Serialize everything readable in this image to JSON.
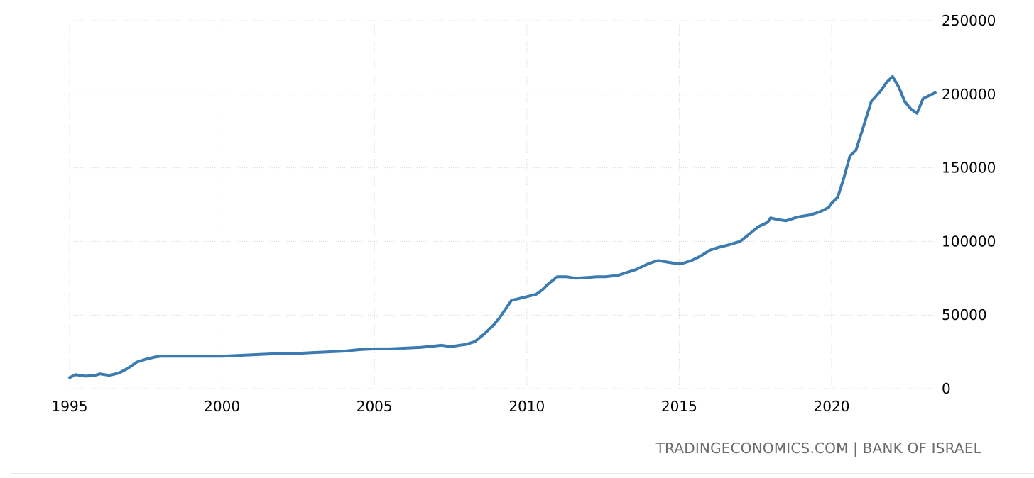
{
  "source_note": "TRADINGECONOMICS.COM | BANK OF ISRAEL",
  "colors": {
    "line": "#3b7bb0",
    "grid": "#d9d9d9",
    "axis_text": "#000000",
    "source_text": "#6b6b6b"
  },
  "chart_data": {
    "type": "line",
    "title": "",
    "xlabel": "",
    "ylabel": "",
    "xlim": [
      1995,
      2023.5
    ],
    "ylim": [
      0,
      250000
    ],
    "x_ticks": [
      1995,
      2000,
      2005,
      2010,
      2015,
      2020
    ],
    "x_tick_labels": [
      "1995",
      "2000",
      "2005",
      "2010",
      "2015",
      "2020"
    ],
    "y_ticks": [
      0,
      50000,
      100000,
      150000,
      200000,
      250000
    ],
    "y_tick_labels": [
      "0",
      "50000",
      "100000",
      "150000",
      "200000",
      "250000"
    ],
    "y_axis_side": "right",
    "grid": true,
    "legend": false,
    "series": [
      {
        "x": [
          1995.0,
          1995.2,
          1995.5,
          1995.8,
          1996.0,
          1996.3,
          1996.6,
          1996.8,
          1997.0,
          1997.2,
          1997.5,
          1997.8,
          1998.0,
          1998.5,
          1999.0,
          1999.5,
          2000.0,
          2000.5,
          2001.0,
          2001.5,
          2002.0,
          2002.5,
          2003.0,
          2003.5,
          2004.0,
          2004.5,
          2005.0,
          2005.5,
          2006.0,
          2006.5,
          2007.0,
          2007.2,
          2007.5,
          2007.8,
          2008.0,
          2008.3,
          2008.6,
          2008.9,
          2009.1,
          2009.3,
          2009.5,
          2009.7,
          2009.9,
          2010.1,
          2010.3,
          2010.5,
          2010.7,
          2011.0,
          2011.3,
          2011.6,
          2012.0,
          2012.3,
          2012.6,
          2013.0,
          2013.3,
          2013.6,
          2014.0,
          2014.3,
          2014.6,
          2014.9,
          2015.1,
          2015.4,
          2015.7,
          2016.0,
          2016.3,
          2016.6,
          2017.0,
          2017.3,
          2017.6,
          2017.9,
          2018.0,
          2018.2,
          2018.5,
          2018.8,
          2019.0,
          2019.3,
          2019.6,
          2019.9,
          2020.0,
          2020.2,
          2020.4,
          2020.6,
          2020.8,
          2021.0,
          2021.3,
          2021.6,
          2021.8,
          2022.0,
          2022.2,
          2022.4,
          2022.6,
          2022.8,
          2023.0,
          2023.2,
          2023.4
        ],
        "values": [
          7500,
          9500,
          8500,
          8800,
          10000,
          9000,
          10500,
          12500,
          15000,
          18000,
          20000,
          21500,
          22000,
          22000,
          22000,
          22000,
          22000,
          22500,
          23000,
          23500,
          24000,
          24000,
          24500,
          25000,
          25500,
          26500,
          27000,
          27000,
          27500,
          28000,
          29000,
          29500,
          28500,
          29500,
          30000,
          32000,
          37000,
          43000,
          48000,
          54000,
          60000,
          61000,
          62000,
          63000,
          64000,
          67000,
          71000,
          76000,
          76000,
          75000,
          75500,
          76000,
          76000,
          77000,
          79000,
          81000,
          85000,
          87000,
          86000,
          85000,
          85000,
          87000,
          90000,
          94000,
          96000,
          97500,
          100000,
          105000,
          110000,
          113000,
          116000,
          115000,
          114000,
          116000,
          117000,
          118000,
          120000,
          123000,
          126000,
          130000,
          143000,
          158000,
          162000,
          175000,
          195000,
          202000,
          208000,
          212000,
          205000,
          195000,
          190000,
          187000,
          197000,
          199000,
          201000
        ]
      }
    ]
  }
}
